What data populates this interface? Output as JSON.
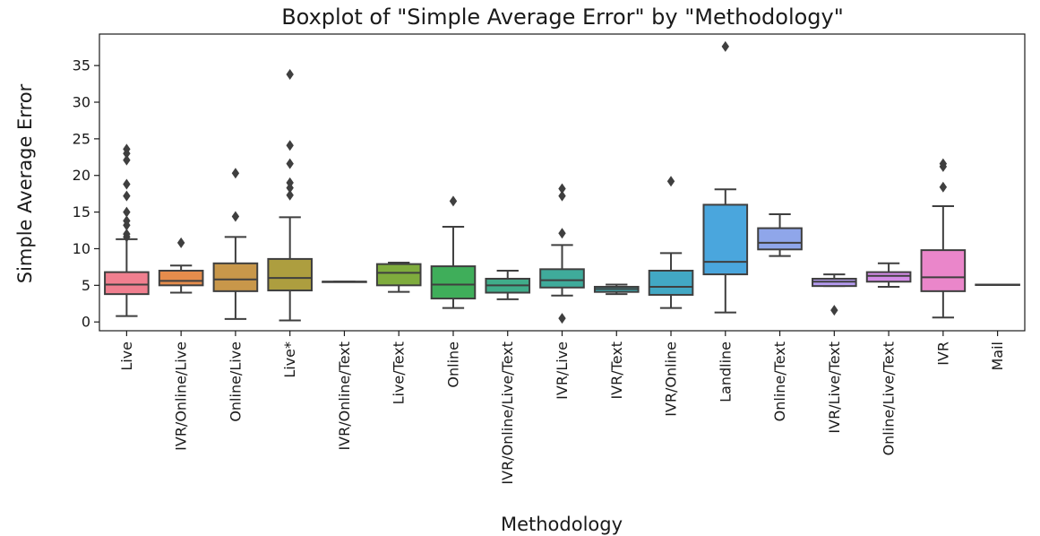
{
  "chart_data": {
    "type": "box",
    "title": "Boxplot of \"Simple Average Error\" by \"Methodology\"",
    "xlabel": "Methodology",
    "ylabel": "Simple Average Error",
    "ylim": [
      -1.2,
      39.3
    ],
    "yticks": [
      0,
      5,
      10,
      15,
      20,
      25,
      30,
      35
    ],
    "grid": false,
    "categories": [
      "Live",
      "IVR/Online/Live",
      "Online/Live",
      "Live*",
      "IVR/Online/Text",
      "Live/Text",
      "Online",
      "IVR/Online/Live/Text",
      "IVR/Live",
      "IVR/Text",
      "IVR/Online",
      "Landline",
      "Online/Text",
      "IVR/Live/Text",
      "Online/Live/Text",
      "IVR",
      "Mail"
    ],
    "series": [
      {
        "category": "Live",
        "color": "#f07f8f",
        "whisker_low": 0.8,
        "q1": 3.8,
        "median": 5.1,
        "q3": 6.8,
        "whisker_high": 11.3,
        "outliers": [
          11.6,
          12.0,
          13.2,
          13.8,
          15.0,
          17.2,
          18.8,
          22.1,
          23.0,
          23.6
        ]
      },
      {
        "category": "IVR/Online/Live",
        "color": "#e58c4c",
        "whisker_low": 4.0,
        "q1": 5.0,
        "median": 5.6,
        "q3": 7.0,
        "whisker_high": 7.7,
        "outliers": [
          10.8
        ]
      },
      {
        "category": "Online/Live",
        "color": "#c8974a",
        "whisker_low": 0.4,
        "q1": 4.2,
        "median": 5.8,
        "q3": 8.0,
        "whisker_high": 11.6,
        "outliers": [
          14.4,
          20.3
        ]
      },
      {
        "category": "Live*",
        "color": "#ad9e3f",
        "whisker_low": 0.2,
        "q1": 4.3,
        "median": 6.0,
        "q3": 8.6,
        "whisker_high": 14.3,
        "outliers": [
          17.3,
          18.3,
          19.0,
          21.6,
          24.1,
          33.8
        ]
      },
      {
        "category": "IVR/Online/Text",
        "color": "#96a63c",
        "whisker_low": 5.5,
        "q1": 5.5,
        "median": 5.5,
        "q3": 5.5,
        "whisker_high": 5.5,
        "outliers": []
      },
      {
        "category": "Live/Text",
        "color": "#7fac3d",
        "whisker_low": 4.1,
        "q1": 5.0,
        "median": 6.7,
        "q3": 7.9,
        "whisker_high": 8.1,
        "outliers": []
      },
      {
        "category": "Online",
        "color": "#3fae5a",
        "whisker_low": 1.9,
        "q1": 3.2,
        "median": 5.1,
        "q3": 7.6,
        "whisker_high": 13.0,
        "outliers": [
          16.5
        ]
      },
      {
        "category": "IVR/Online/Live/Text",
        "color": "#40ac8a",
        "whisker_low": 3.1,
        "q1": 4.0,
        "median": 5.0,
        "q3": 5.9,
        "whisker_high": 7.0,
        "outliers": []
      },
      {
        "category": "IVR/Live",
        "color": "#3fab9b",
        "whisker_low": 3.6,
        "q1": 4.7,
        "median": 5.7,
        "q3": 7.2,
        "whisker_high": 10.5,
        "outliers": [
          0.5,
          12.1,
          17.2,
          18.2
        ]
      },
      {
        "category": "IVR/Text",
        "color": "#3fa9ad",
        "whisker_low": 3.8,
        "q1": 4.1,
        "median": 4.5,
        "q3": 4.8,
        "whisker_high": 5.1,
        "outliers": []
      },
      {
        "category": "IVR/Online",
        "color": "#42a8c4",
        "whisker_low": 1.9,
        "q1": 3.7,
        "median": 4.8,
        "q3": 7.0,
        "whisker_high": 9.4,
        "outliers": [
          19.2
        ]
      },
      {
        "category": "Landline",
        "color": "#4aa6dd",
        "whisker_low": 1.3,
        "q1": 6.5,
        "median": 8.2,
        "q3": 16.0,
        "whisker_high": 18.1,
        "outliers": [
          37.6
        ]
      },
      {
        "category": "Online/Text",
        "color": "#8fa6ea",
        "whisker_low": 9.0,
        "q1": 9.9,
        "median": 10.8,
        "q3": 12.8,
        "whisker_high": 14.7,
        "outliers": []
      },
      {
        "category": "IVR/Live/Text",
        "color": "#b49aee",
        "whisker_low": 4.9,
        "q1": 4.9,
        "median": 5.5,
        "q3": 5.9,
        "whisker_high": 6.5,
        "outliers": [
          1.6
        ]
      },
      {
        "category": "Online/Live/Text",
        "color": "#d38ce6",
        "whisker_low": 4.8,
        "q1": 5.5,
        "median": 6.3,
        "q3": 6.8,
        "whisker_high": 8.0,
        "outliers": []
      },
      {
        "category": "IVR",
        "color": "#ea86ca",
        "whisker_low": 0.6,
        "q1": 4.2,
        "median": 6.1,
        "q3": 9.8,
        "whisker_high": 15.8,
        "outliers": [
          18.4,
          21.2,
          21.6
        ]
      },
      {
        "category": "Mail",
        "color": "#ee88ae",
        "whisker_low": 5.1,
        "q1": 5.1,
        "median": 5.1,
        "q3": 5.1,
        "whisker_high": 5.1,
        "outliers": []
      }
    ]
  }
}
